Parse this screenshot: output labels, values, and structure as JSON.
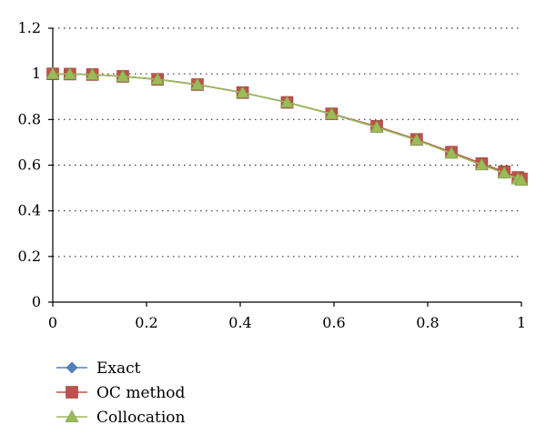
{
  "chart_data": {
    "type": "line",
    "title": "",
    "xlabel": "",
    "ylabel": "",
    "xlim": [
      0,
      1
    ],
    "ylim": [
      0,
      1.2
    ],
    "xticks": [
      "0",
      "0.2",
      "0.4",
      "0.6",
      "0.8",
      "1"
    ],
    "yticks": [
      "0",
      "0.2",
      "0.4",
      "0.6",
      "0.8",
      "1",
      "1.2"
    ],
    "grid": "horizontal dotted",
    "legend_position": "bottom-left",
    "x": [
      0,
      0.0366,
      0.0846,
      0.1495,
      0.2236,
      0.3087,
      0.4051,
      0.5,
      0.5949,
      0.6913,
      0.7764,
      0.8505,
      0.9154,
      0.9634,
      0.9924,
      1.0
    ],
    "series": [
      {
        "name": "Exact",
        "color": "#4f81bd",
        "marker": "diamond",
        "values": [
          1.0,
          0.999,
          0.997,
          0.989,
          0.976,
          0.953,
          0.918,
          0.875,
          0.824,
          0.766,
          0.71,
          0.655,
          0.603,
          0.567,
          0.543,
          0.537
        ]
      },
      {
        "name": "OC method",
        "color": "#c0504d",
        "marker": "square",
        "values": [
          1.0,
          0.999,
          0.997,
          0.989,
          0.976,
          0.953,
          0.918,
          0.875,
          0.825,
          0.77,
          0.713,
          0.657,
          0.607,
          0.571,
          0.546,
          0.54
        ]
      },
      {
        "name": "Collocation",
        "color": "#9bbb59",
        "marker": "triangle",
        "values": [
          1.0,
          0.999,
          0.997,
          0.989,
          0.976,
          0.953,
          0.918,
          0.875,
          0.824,
          0.766,
          0.71,
          0.652,
          0.601,
          0.565,
          0.54,
          0.534
        ]
      }
    ]
  }
}
